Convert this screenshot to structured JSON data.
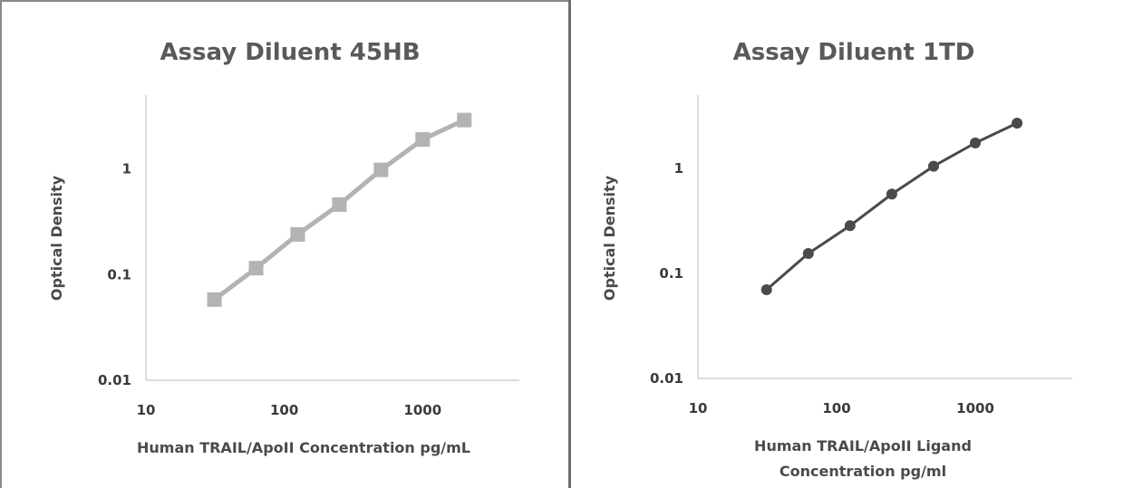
{
  "chart_data": [
    {
      "type": "line",
      "title": "Assay Diluent 45HB",
      "ylabel": "Optical Density",
      "xlabel_lines": [
        "Human TRAIL/ApoII  Concentration pg/mL"
      ],
      "x_scale": "log",
      "y_scale": "log",
      "xlim": [
        10,
        5000
      ],
      "ylim": [
        0.01,
        5
      ],
      "x_ticks": [
        "10",
        "100",
        "1000"
      ],
      "y_ticks": [
        "0.01",
        "0.1",
        "1"
      ],
      "grid": false,
      "marker": "square",
      "color": "#b3b3b3",
      "series": [
        {
          "x": [
            31.25,
            62.5,
            125,
            250,
            500,
            1000,
            2000
          ],
          "y": [
            0.058,
            0.115,
            0.24,
            0.46,
            0.98,
            1.9,
            2.9
          ]
        }
      ]
    },
    {
      "type": "line",
      "title": "Assay Diluent 1TD",
      "ylabel": "Optical Density",
      "xlabel_lines": [
        "Human TRAIL/ApoII Ligand",
        "Concentration pg/ml"
      ],
      "x_scale": "log",
      "y_scale": "log",
      "xlim": [
        10,
        5000
      ],
      "ylim": [
        0.01,
        5
      ],
      "x_ticks": [
        "10",
        "100",
        "1000"
      ],
      "y_ticks": [
        "0.01",
        "0.1",
        "1"
      ],
      "grid": false,
      "marker": "circle",
      "color": "#4a4a4a",
      "series": [
        {
          "x": [
            31.25,
            62.5,
            125,
            250,
            500,
            1000,
            2000
          ],
          "y": [
            0.07,
            0.155,
            0.285,
            0.57,
            1.05,
            1.75,
            2.7
          ]
        }
      ]
    }
  ]
}
